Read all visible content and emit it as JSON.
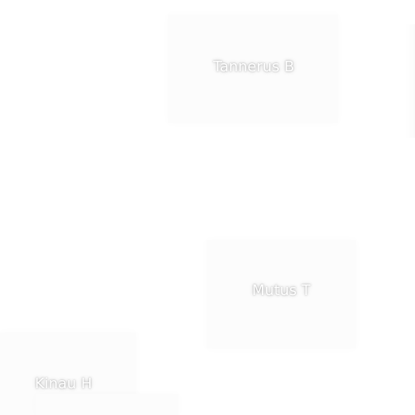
{
  "map": {
    "labels": {
      "tannerus": "Tannerus B",
      "mutus": "Mutus T",
      "kinau": "Kinau H"
    }
  }
}
